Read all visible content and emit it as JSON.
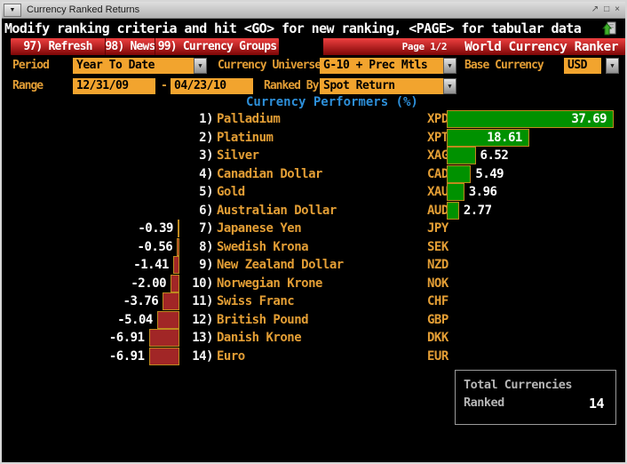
{
  "window": {
    "title": "Currency Ranked Returns",
    "controls": {
      "restore": "restore-icon",
      "maximize": "maximize-icon",
      "close": "close-icon"
    }
  },
  "message_bar": {
    "text": "Modify ranking criteria and hit <GO> for new ranking, <PAGE> for tabular data",
    "icon": "export-icon"
  },
  "toolbar": {
    "buttons": [
      {
        "label": "97) Refresh"
      },
      {
        "label": "98) News"
      },
      {
        "label": "99) Currency Groups"
      }
    ],
    "page_indicator": "Page 1/2",
    "app_title": "World Currency Ranker"
  },
  "form": {
    "period": {
      "label": "Period",
      "value": "Year To Date"
    },
    "currency_universe": {
      "label": "Currency Universe",
      "value": "G-10 + Prec Mtls"
    },
    "base_currency": {
      "label": "Base Currency",
      "value": "USD"
    },
    "range": {
      "label": "Range",
      "start": "12/31/09",
      "separator": "-",
      "end": "04/23/10"
    },
    "ranked_by": {
      "label": "Ranked By",
      "value": "Spot Return"
    }
  },
  "chart_data": {
    "type": "bar",
    "orientation": "horizontal",
    "title": "Currency Performers (%)",
    "ranks": [
      "1)",
      "2)",
      "3)",
      "4)",
      "5)",
      "6)",
      "7)",
      "8)",
      "9)",
      "10)",
      "11)",
      "12)",
      "13)",
      "14)"
    ],
    "categories": [
      "Palladium",
      "Platinum",
      "Silver",
      "Canadian Dollar",
      "Gold",
      "Australian Dollar",
      "Japanese Yen",
      "Swedish Krona",
      "New Zealand Dollar",
      "Norwegian Krone",
      "Swiss Franc",
      "British Pound",
      "Danish Krone",
      "Euro"
    ],
    "tickers": [
      "XPD",
      "XPT",
      "XAG",
      "CAD",
      "XAU",
      "AUD",
      "JPY",
      "SEK",
      "NZD",
      "NOK",
      "CHF",
      "GBP",
      "DKK",
      "EUR"
    ],
    "values": [
      37.69,
      18.61,
      6.52,
      5.49,
      3.96,
      2.77,
      -0.39,
      -0.56,
      -1.41,
      -2.0,
      -3.76,
      -5.04,
      -6.91,
      -6.91
    ],
    "xlim": [
      -8,
      40
    ],
    "positive_color": "#009100",
    "negative_color": "#a12626",
    "bar_border_color": "#bf8a1e"
  },
  "summary_box": {
    "line1": "Total Currencies",
    "line2": "Ranked",
    "value": "14"
  },
  "colors": {
    "amber_text": "#e39e35",
    "field_background": "#f2a42e",
    "title_blue": "#2d8fd9",
    "toolbar_red": "#c41212",
    "rank_text": "#f2f2f2",
    "value_text": "#ffffff"
  }
}
